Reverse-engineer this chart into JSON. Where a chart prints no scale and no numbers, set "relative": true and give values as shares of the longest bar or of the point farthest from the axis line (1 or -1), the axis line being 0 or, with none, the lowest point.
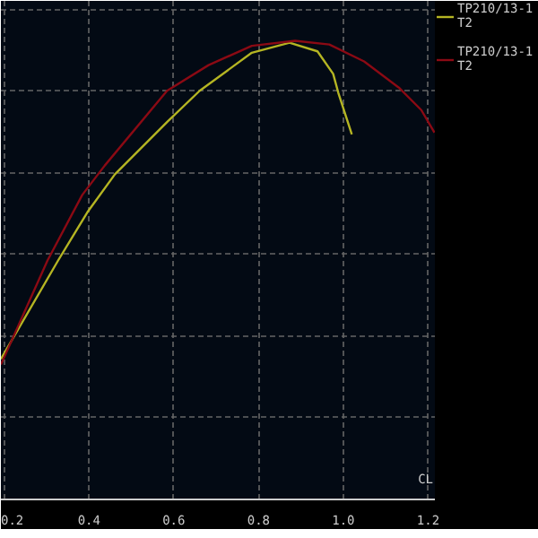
{
  "chart_data": {
    "type": "line",
    "relative": true,
    "xlabel": "CL",
    "xlim": [
      0.192,
      1.216
    ],
    "xticks": [
      {
        "value": 0.2,
        "label": "0.2"
      },
      0.4,
      0.6,
      0.8,
      {
        "value": 1.0,
        "label": "1.0"
      },
      {
        "value": 1.2,
        "label": "1.2"
      }
    ],
    "grid": true,
    "legend": "right",
    "tick_labels": "x",
    "series": [
      {
        "name": "TP210/13-1\nT2",
        "color": "#b5b523",
        "x": [
          0.192,
          0.327,
          0.396,
          0.461,
          0.584,
          0.661,
          0.784,
          0.873,
          0.939,
          0.976,
          0.988,
          1.02
        ],
        "values": [
          0.306,
          0.521,
          0.626,
          0.709,
          0.823,
          0.891,
          0.974,
          0.996,
          0.977,
          0.928,
          0.887,
          0.796
        ]
      },
      {
        "name": "TP210/13-1\nT2",
        "color": "#8b0a14",
        "x": [
          0.192,
          0.302,
          0.384,
          0.437,
          0.584,
          0.682,
          0.784,
          0.886,
          0.967,
          1.049,
          1.131,
          1.184,
          1.215
        ],
        "values": [
          0.294,
          0.521,
          0.664,
          0.728,
          0.891,
          0.947,
          0.989,
          1.0,
          0.992,
          0.955,
          0.898,
          0.849,
          0.8
        ]
      }
    ]
  }
}
